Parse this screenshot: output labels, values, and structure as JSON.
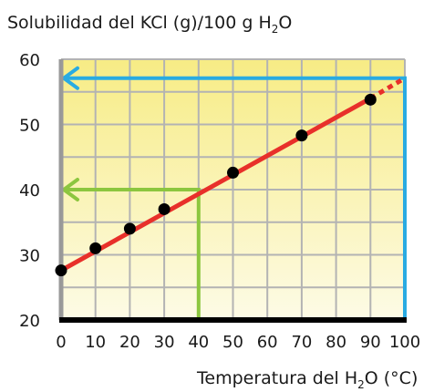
{
  "chart_data": {
    "type": "line",
    "title": "",
    "ylabel": "Solubilidad del KCl (g)/100 g H",
    "ylabel_sub": "2",
    "ylabel_tail": "O",
    "xlabel": "Temperatura del H",
    "xlabel_sub": "2",
    "xlabel_tail": "O (°C)",
    "xlim": [
      0,
      100
    ],
    "ylim": [
      20,
      60
    ],
    "x_ticks": [
      "0",
      "10",
      "20",
      "30",
      "40",
      "50",
      "60",
      "70",
      "80",
      "90",
      "100"
    ],
    "y_ticks": [
      "20",
      "30",
      "40",
      "50",
      "60"
    ],
    "grid": true,
    "points": [
      {
        "x": 0,
        "y": 27.6
      },
      {
        "x": 10,
        "y": 31.0
      },
      {
        "x": 20,
        "y": 34.0
      },
      {
        "x": 30,
        "y": 37.0
      },
      {
        "x": 50,
        "y": 42.6
      },
      {
        "x": 70,
        "y": 48.3
      },
      {
        "x": 90,
        "y": 53.8
      }
    ],
    "fit_line": {
      "x_start": 0,
      "y_start": 27.6,
      "x_end": 90,
      "y_end": 54.0,
      "dotted_to_x": 100,
      "dotted_to_y": 57.1,
      "color": "#e8302a"
    },
    "guides": [
      {
        "x": 40,
        "y": 40.0,
        "color": "#8cc63f"
      },
      {
        "x": 100,
        "y": 57.1,
        "color": "#29abe2"
      }
    ],
    "colors": {
      "bg_top": "#f7ec85",
      "bg_bottom": "#fdfbe6",
      "grid": "#b3b3b3",
      "axis_y": "#999999",
      "axis_x": "#000000",
      "point": "#000000"
    }
  }
}
